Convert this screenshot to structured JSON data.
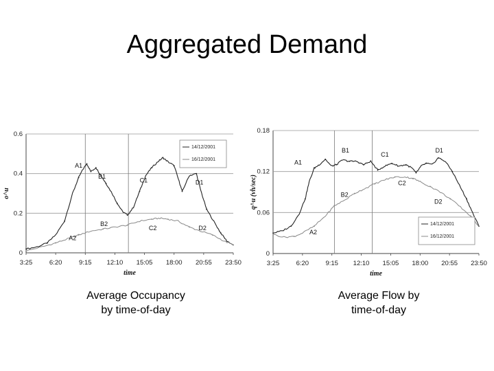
{
  "slide": {
    "title": "Aggregated Demand",
    "captions": [
      [
        "Average Occupancy",
        "by time-of-day"
      ],
      [
        "Average Flow by",
        "time-of-day"
      ]
    ]
  },
  "chart_data": [
    {
      "type": "line",
      "xlabel": "time",
      "ylabel": "o^u",
      "x_ticks": [
        "3:25",
        "6:20",
        "9:15",
        "12:10",
        "15:05",
        "18:00",
        "20:55",
        "23:50"
      ],
      "xlim": [
        3.4167,
        23.8333
      ],
      "ylim": [
        0,
        0.6
      ],
      "y_ticks": [
        0,
        0.2,
        0.4,
        0.6
      ],
      "y_tick_labels": [
        "0",
        "0.2",
        "0.4",
        "0.6"
      ],
      "grid": true,
      "vertical_markers": [
        9.25,
        13.5
      ],
      "legend": {
        "placement": "top-right",
        "entries": [
          "14/12/2001",
          "16/12/2001"
        ]
      },
      "series": [
        {
          "name": "14/12/2001",
          "color": "#222222",
          "x": [
            3.42,
            4.5,
            5.5,
            6.33,
            7.2,
            8.0,
            8.6,
            9.0,
            9.4,
            9.8,
            10.3,
            10.8,
            11.3,
            11.9,
            12.4,
            12.9,
            13.4,
            14.0,
            14.6,
            15.2,
            15.8,
            16.4,
            16.9,
            17.4,
            18.0,
            18.5,
            18.8,
            19.5,
            20.2,
            20.6,
            21.2,
            21.9,
            22.6,
            23.2,
            23.83
          ],
          "y": [
            0.02,
            0.03,
            0.05,
            0.09,
            0.16,
            0.3,
            0.38,
            0.42,
            0.45,
            0.41,
            0.43,
            0.39,
            0.35,
            0.3,
            0.25,
            0.21,
            0.19,
            0.23,
            0.31,
            0.39,
            0.43,
            0.46,
            0.48,
            0.46,
            0.44,
            0.36,
            0.31,
            0.39,
            0.4,
            0.32,
            0.22,
            0.16,
            0.1,
            0.06,
            0.04
          ]
        },
        {
          "name": "16/12/2001",
          "color": "#888888",
          "x": [
            3.42,
            5.0,
            6.33,
            7.5,
            8.6,
            9.8,
            11.0,
            12.2,
            13.4,
            14.6,
            15.8,
            16.6,
            17.4,
            18.4,
            19.5,
            20.6,
            21.8,
            22.9,
            23.83
          ],
          "y": [
            0.01,
            0.03,
            0.05,
            0.07,
            0.09,
            0.11,
            0.12,
            0.13,
            0.14,
            0.16,
            0.17,
            0.175,
            0.17,
            0.16,
            0.13,
            0.11,
            0.09,
            0.06,
            0.04
          ]
        }
      ],
      "annotations": [
        {
          "text": "A1",
          "x": 8.6,
          "y": 0.43
        },
        {
          "text": "B1",
          "x": 10.9,
          "y": 0.375
        },
        {
          "text": "C1",
          "x": 15.0,
          "y": 0.355
        },
        {
          "text": "D1",
          "x": 20.5,
          "y": 0.345
        },
        {
          "text": "B2",
          "x": 11.1,
          "y": 0.135
        },
        {
          "text": "C2",
          "x": 15.9,
          "y": 0.115
        },
        {
          "text": "D2",
          "x": 20.8,
          "y": 0.115
        },
        {
          "text": "A2",
          "x": 8.0,
          "y": 0.065
        }
      ]
    },
    {
      "type": "line",
      "xlabel": "time",
      "ylabel": "q^u (vh/sec)",
      "x_ticks": [
        "3:25",
        "6:20",
        "9:15",
        "12:10",
        "15:05",
        "18:00",
        "20:55",
        "23:50"
      ],
      "xlim": [
        3.4167,
        23.8333
      ],
      "ylim": [
        0,
        0.18
      ],
      "y_ticks": [
        0,
        0.06,
        0.12,
        0.18
      ],
      "y_tick_labels": [
        "0",
        "0.06",
        "0.12",
        "0.18"
      ],
      "grid": true,
      "vertical_markers": [
        9.5,
        13.25
      ],
      "legend": {
        "placement": "bottom-right",
        "entries": [
          "14/12/2001",
          "16/12/2001"
        ]
      },
      "series": [
        {
          "name": "14/12/2001",
          "color": "#222222",
          "x": [
            3.42,
            4.3,
            5.2,
            6.0,
            6.6,
            7.0,
            7.5,
            8.0,
            8.6,
            9.2,
            9.7,
            10.3,
            11.0,
            11.7,
            12.4,
            13.1,
            13.8,
            14.5,
            15.2,
            15.9,
            16.6,
            17.2,
            17.6,
            18.1,
            18.6,
            19.2,
            19.8,
            20.5,
            21.2,
            21.9,
            22.6,
            23.2,
            23.83
          ],
          "y": [
            0.03,
            0.033,
            0.04,
            0.058,
            0.08,
            0.105,
            0.125,
            0.13,
            0.138,
            0.128,
            0.13,
            0.137,
            0.135,
            0.135,
            0.13,
            0.135,
            0.122,
            0.128,
            0.132,
            0.128,
            0.13,
            0.125,
            0.118,
            0.128,
            0.132,
            0.13,
            0.14,
            0.135,
            0.12,
            0.1,
            0.08,
            0.06,
            0.04
          ]
        },
        {
          "name": "16/12/2001",
          "color": "#888888",
          "x": [
            3.42,
            4.5,
            5.5,
            6.33,
            7.5,
            8.6,
            9.5,
            10.5,
            11.5,
            12.5,
            13.5,
            14.5,
            15.5,
            16.5,
            17.3,
            18.0,
            19.0,
            20.0,
            21.0,
            22.0,
            23.0,
            23.83
          ],
          "y": [
            0.028,
            0.024,
            0.025,
            0.03,
            0.04,
            0.055,
            0.07,
            0.078,
            0.088,
            0.095,
            0.102,
            0.108,
            0.112,
            0.112,
            0.11,
            0.105,
            0.098,
            0.09,
            0.08,
            0.068,
            0.055,
            0.04
          ]
        }
      ],
      "annotations": [
        {
          "text": "A1",
          "x": 5.9,
          "y": 0.13
        },
        {
          "text": "B1",
          "x": 10.6,
          "y": 0.148
        },
        {
          "text": "C1",
          "x": 14.5,
          "y": 0.142
        },
        {
          "text": "D1",
          "x": 19.9,
          "y": 0.148
        },
        {
          "text": "C2",
          "x": 16.2,
          "y": 0.1
        },
        {
          "text": "B2",
          "x": 10.5,
          "y": 0.083
        },
        {
          "text": "D2",
          "x": 19.8,
          "y": 0.073
        },
        {
          "text": "A2",
          "x": 7.4,
          "y": 0.028
        }
      ]
    }
  ]
}
